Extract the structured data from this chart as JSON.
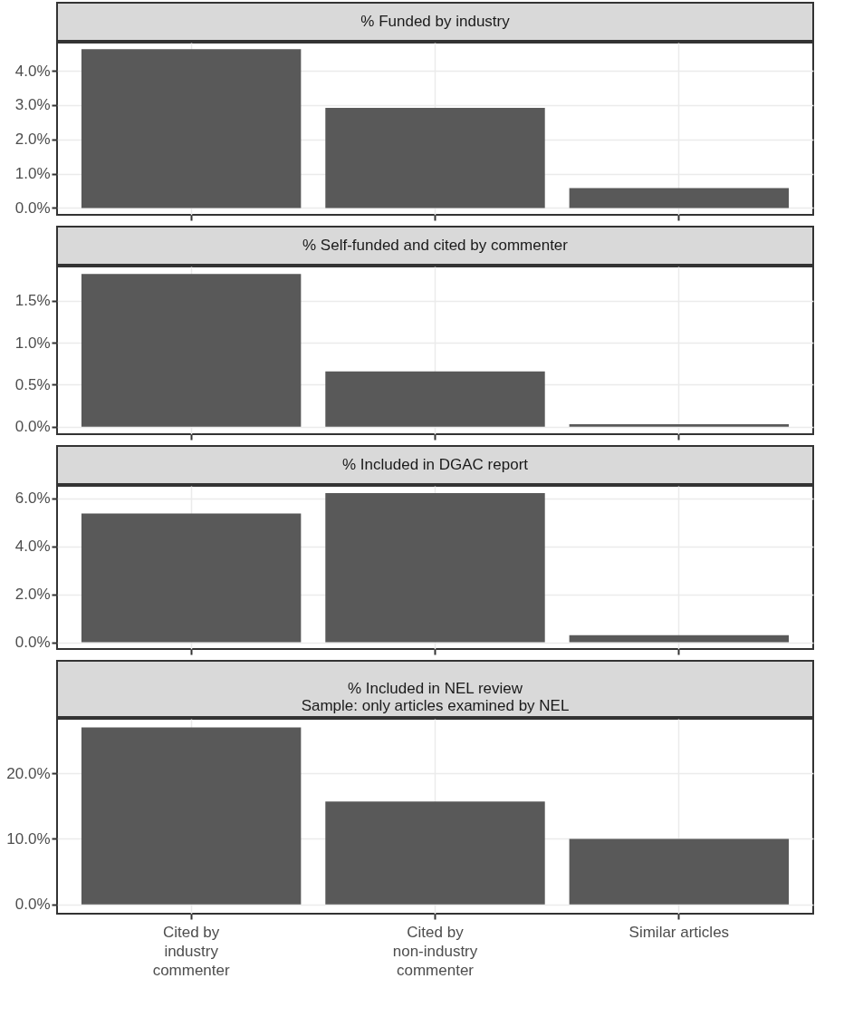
{
  "chart_data": [
    {
      "type": "bar",
      "title": "% Funded by industry",
      "categories": [
        null,
        null,
        null
      ],
      "values": [
        4.63,
        2.92,
        0.58
      ],
      "color": "#595959",
      "ylim": [
        -0.2,
        4.82
      ],
      "yticks": [
        {
          "value": 0,
          "label": "0.0%"
        },
        {
          "value": 1,
          "label": "1.0%"
        },
        {
          "value": 2,
          "label": "2.0%"
        },
        {
          "value": 3,
          "label": "3.0%"
        },
        {
          "value": 4,
          "label": "4.0%"
        }
      ],
      "grid": true,
      "tick_labels": "y"
    },
    {
      "type": "bar",
      "title": "% Self-funded and cited by commenter",
      "categories": [
        null,
        null,
        null
      ],
      "values": [
        1.82,
        0.66,
        0.03
      ],
      "color": "#595959",
      "ylim": [
        -0.09,
        1.91
      ],
      "yticks": [
        {
          "value": 0,
          "label": "0.0%"
        },
        {
          "value": 0.5,
          "label": "0.5%"
        },
        {
          "value": 1,
          "label": "1.0%"
        },
        {
          "value": 1.5,
          "label": "1.5%"
        }
      ],
      "grid": true,
      "tick_labels": "y"
    },
    {
      "type": "bar",
      "title": "% Included in DGAC report",
      "categories": [
        null,
        null,
        null
      ],
      "values": [
        5.37,
        6.22,
        0.3
      ],
      "color": "#595959",
      "ylim": [
        -0.28,
        6.52
      ],
      "yticks": [
        {
          "value": 0,
          "label": "0.0%"
        },
        {
          "value": 2,
          "label": "2.0%"
        },
        {
          "value": 4,
          "label": "4.0%"
        },
        {
          "value": 6,
          "label": "6.0%"
        }
      ],
      "grid": true,
      "tick_labels": "y"
    },
    {
      "type": "bar",
      "title": "% Included in NEL review\nSample: only articles examined by NEL",
      "categories": [
        "Cited by\nindustry\ncommenter",
        "Cited by\nnon-industry\ncommenter",
        "Similar articles"
      ],
      "values": [
        27.0,
        15.7,
        10.0
      ],
      "color": "#595959",
      "ylim": [
        -1.4,
        28.3
      ],
      "yticks": [
        {
          "value": 0,
          "label": "0.0%"
        },
        {
          "value": 10,
          "label": "10.0%"
        },
        {
          "value": 20,
          "label": "20.0%"
        }
      ],
      "grid": true
    }
  ]
}
